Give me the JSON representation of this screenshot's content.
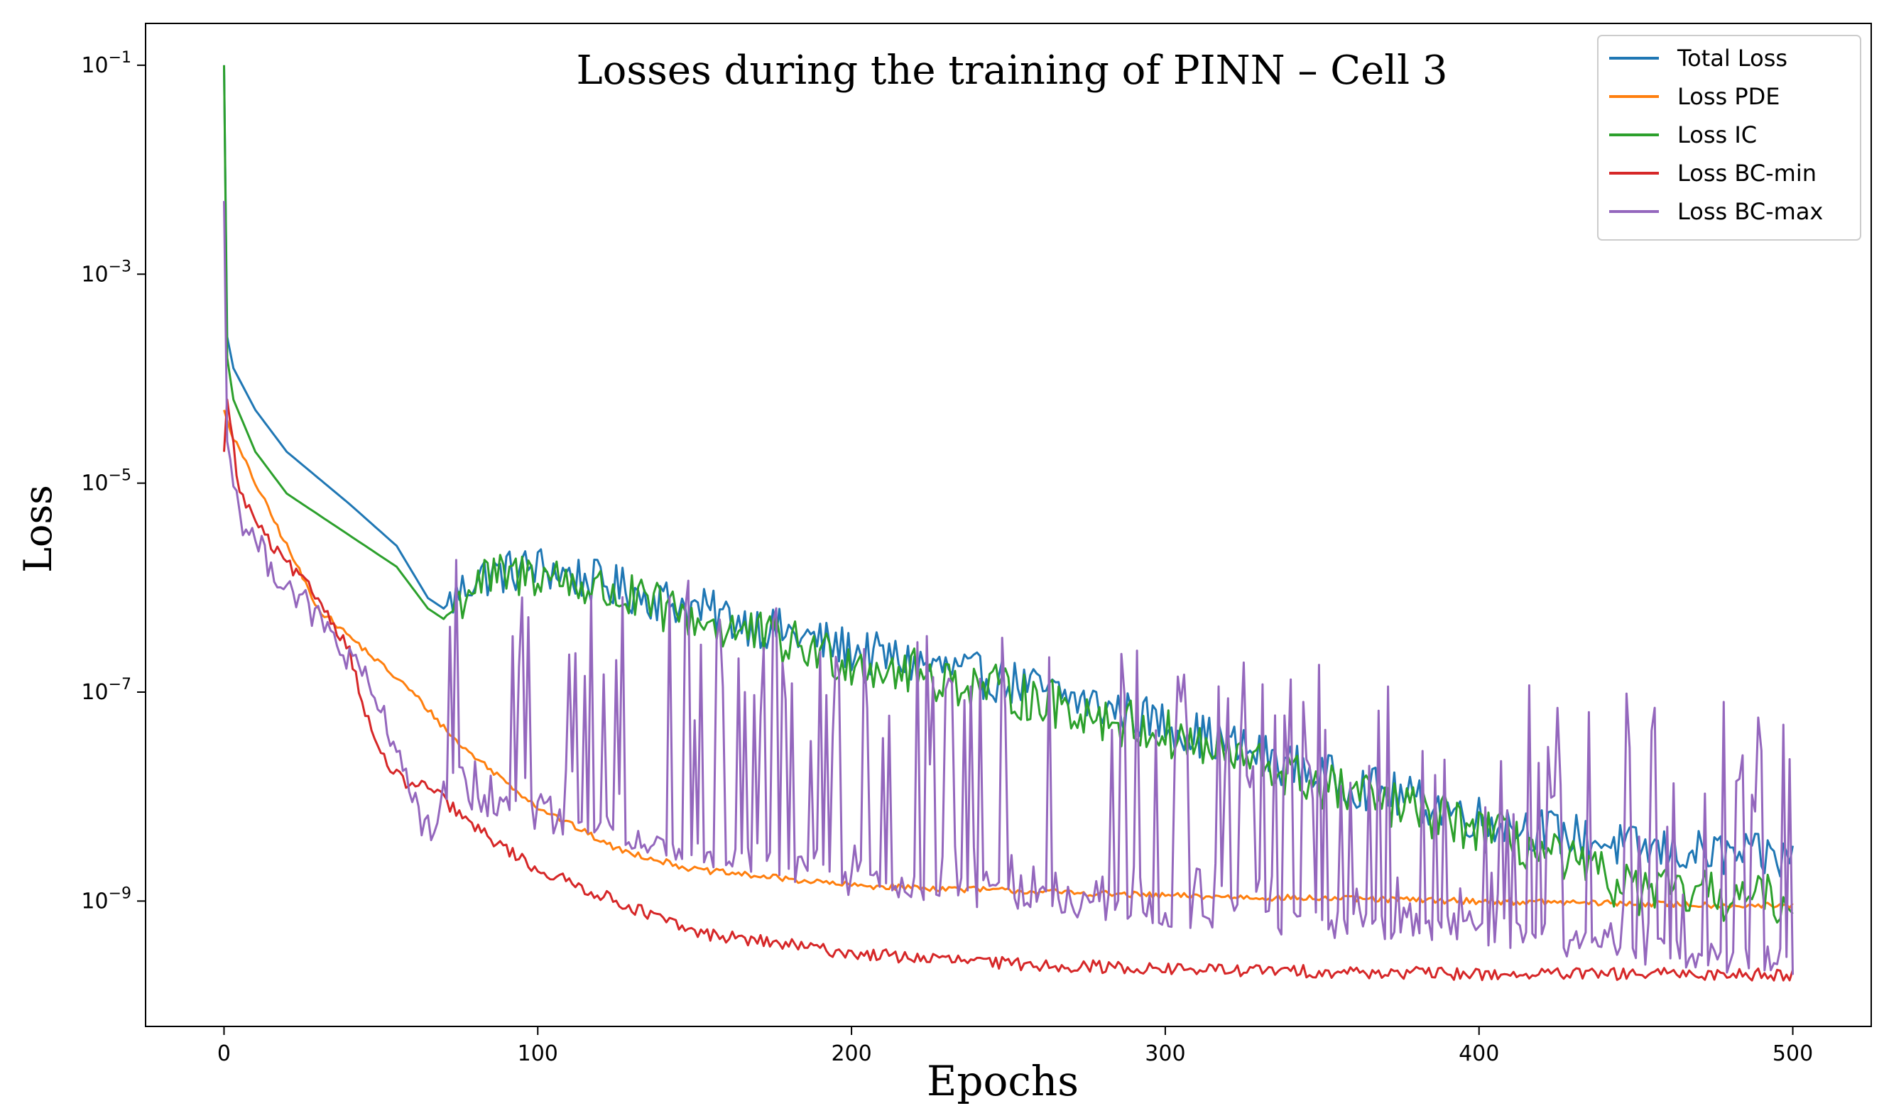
{
  "chart_data": {
    "type": "line",
    "title": "Losses  during  the training  of PINN – Cell  3",
    "xlabel": "Epochs",
    "ylabel": "Loss",
    "xscale": "linear",
    "yscale": "log",
    "xlim": [
      -25,
      525
    ],
    "ylim_log10": [
      -10.2,
      -0.6
    ],
    "x_ticks": [
      0,
      100,
      200,
      300,
      400,
      500
    ],
    "x_tick_labels": [
      "0",
      "100",
      "200",
      "300",
      "400",
      "500"
    ],
    "y_ticks_log10": [
      -1,
      -3,
      -5,
      -7,
      -9
    ],
    "y_tick_labels": [
      {
        "base": "10",
        "exp": "−1"
      },
      {
        "base": "10",
        "exp": "−3"
      },
      {
        "base": "10",
        "exp": "−5"
      },
      {
        "base": "10",
        "exp": "−7"
      },
      {
        "base": "10",
        "exp": "−9"
      }
    ],
    "legend_position": "top-right",
    "series": [
      {
        "name": "Total Loss",
        "color": "#1f77b4",
        "anchors_x": [
          0,
          1,
          3,
          10,
          20,
          40,
          55,
          65,
          70,
          80,
          100,
          150,
          200,
          250,
          300,
          350,
          400,
          450,
          500
        ],
        "anchors_log10": [
          -1.0,
          -3.6,
          -3.9,
          -4.3,
          -4.7,
          -5.2,
          -5.6,
          -6.1,
          -6.2,
          -5.9,
          -5.8,
          -6.2,
          -6.6,
          -6.9,
          -7.3,
          -7.8,
          -8.2,
          -8.5,
          -8.6
        ],
        "noise": 0.22,
        "noise_start": 72
      },
      {
        "name": "Loss PDE",
        "color": "#ff7f0e",
        "anchors_x": [
          0,
          2,
          10,
          20,
          30,
          45,
          60,
          75,
          100,
          125,
          150,
          200,
          250,
          300,
          400,
          500
        ],
        "anchors_log10": [
          -4.3,
          -4.5,
          -5.0,
          -5.6,
          -6.2,
          -6.6,
          -7.0,
          -7.5,
          -8.1,
          -8.5,
          -8.7,
          -8.85,
          -8.9,
          -8.95,
          -9.0,
          -9.05
        ],
        "noise": 0.03,
        "noise_start": 0
      },
      {
        "name": "Loss IC",
        "color": "#2ca02c",
        "anchors_x": [
          0,
          1,
          3,
          10,
          20,
          40,
          55,
          65,
          70,
          80,
          100,
          150,
          200,
          250,
          300,
          350,
          400,
          450,
          500
        ],
        "anchors_log10": [
          -1.0,
          -3.8,
          -4.2,
          -4.7,
          -5.1,
          -5.5,
          -5.8,
          -6.2,
          -6.3,
          -5.95,
          -5.85,
          -6.3,
          -6.7,
          -7.0,
          -7.4,
          -7.9,
          -8.3,
          -8.9,
          -9.0
        ],
        "noise": 0.24,
        "noise_start": 72
      },
      {
        "name": "Loss BC-min",
        "color": "#d62728",
        "anchors_x": [
          0,
          1,
          5,
          15,
          30,
          40,
          45,
          50,
          55,
          60,
          65,
          80,
          100,
          150,
          200,
          250,
          300,
          400,
          500
        ],
        "anchors_log10": [
          -4.7,
          -4.2,
          -5.1,
          -5.6,
          -6.1,
          -6.6,
          -7.2,
          -7.6,
          -7.8,
          -7.9,
          -7.9,
          -8.3,
          -8.7,
          -9.3,
          -9.5,
          -9.6,
          -9.65,
          -9.7,
          -9.7
        ],
        "noise": 0.06,
        "noise_start": 0
      },
      {
        "name": "Loss BC-max",
        "color": "#9467bd",
        "anchors_x": [
          0,
          1,
          5,
          15,
          30,
          45,
          55,
          62,
          68,
          70,
          100,
          150,
          200,
          300,
          400,
          500
        ],
        "anchors_log10": [
          -2.3,
          -4.6,
          -5.3,
          -5.8,
          -6.3,
          -6.9,
          -7.5,
          -8.2,
          -8.4,
          -8.0,
          -8.2,
          -8.5,
          -8.8,
          -9.1,
          -9.3,
          -9.6
        ],
        "noise": 0.15,
        "noise_start": 0,
        "spikes": true
      }
    ]
  }
}
